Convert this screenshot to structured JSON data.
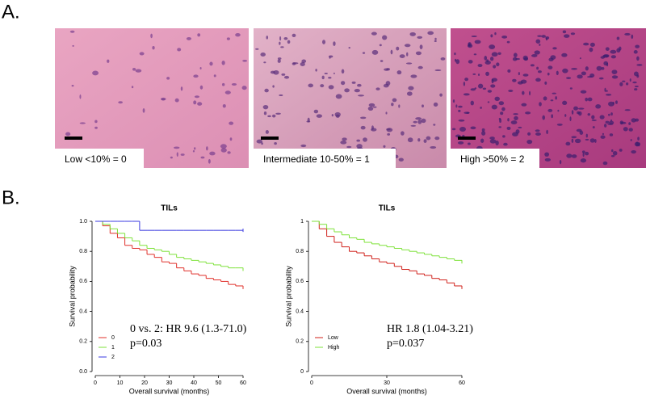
{
  "panels": {
    "a": {
      "label": "A.",
      "captions": [
        "Low <10% = 0",
        "Intermediate 10-50% = 1",
        "High >50% = 2"
      ]
    },
    "b": {
      "label": "B."
    }
  },
  "chart_data": [
    {
      "type": "line",
      "step": true,
      "title": "TILs",
      "x_label": "Overall survival (months)",
      "y_label": "Survival probability",
      "x": [
        0,
        3,
        6,
        9,
        12,
        15,
        18,
        21,
        24,
        27,
        30,
        33,
        36,
        39,
        42,
        45,
        48,
        51,
        54,
        57,
        60
      ],
      "xlim": [
        0,
        60
      ],
      "xticks": [
        0,
        10,
        20,
        30,
        40,
        50,
        60
      ],
      "ylim": [
        0,
        1
      ],
      "yticks": [
        {
          "value": 0,
          "label": "0.0"
        },
        0.2,
        0.4,
        0.6,
        0.8,
        {
          "value": 1,
          "label": "1.0"
        }
      ],
      "legend": "lower left",
      "series": [
        {
          "name": "0",
          "color": "#e0302a",
          "values": [
            1,
            0.97,
            0.92,
            0.89,
            0.84,
            0.82,
            0.81,
            0.78,
            0.76,
            0.73,
            0.72,
            0.69,
            0.67,
            0.65,
            0.64,
            0.62,
            0.61,
            0.6,
            0.58,
            0.57,
            0.56
          ]
        },
        {
          "name": "1",
          "color": "#7ee23a",
          "values": [
            1,
            0.98,
            0.95,
            0.92,
            0.89,
            0.87,
            0.84,
            0.82,
            0.81,
            0.8,
            0.78,
            0.76,
            0.75,
            0.74,
            0.73,
            0.72,
            0.71,
            0.7,
            0.69,
            0.69,
            0.68
          ]
        },
        {
          "name": "2",
          "color": "#3a3ae0",
          "values": [
            1,
            1,
            1,
            1,
            1,
            1,
            0.94,
            0.94,
            0.94,
            0.94,
            0.94,
            0.94,
            0.94,
            0.94,
            0.94,
            0.94,
            0.94,
            0.94,
            0.94,
            0.94,
            0.94
          ]
        }
      ],
      "annotations": [
        "0 vs. 2: HR 9.6 (1.3-71.0)",
        "p=0.03"
      ]
    },
    {
      "type": "line",
      "step": true,
      "title": "TILs",
      "x_label": "Overall survival (months)",
      "y_label": "Survival probability",
      "x": [
        0,
        3,
        6,
        9,
        12,
        15,
        18,
        21,
        24,
        27,
        30,
        33,
        36,
        39,
        42,
        45,
        48,
        51,
        54,
        57,
        60
      ],
      "xlim": [
        0,
        60
      ],
      "xticks": [
        0,
        30,
        60
      ],
      "ylim": [
        0,
        1
      ],
      "yticks": [
        0,
        0.2,
        0.4,
        0.6,
        0.8,
        1
      ],
      "legend": "lower left",
      "series": [
        {
          "name": "Low",
          "color": "#d0201a",
          "values": [
            1,
            0.95,
            0.9,
            0.86,
            0.83,
            0.8,
            0.79,
            0.77,
            0.75,
            0.73,
            0.72,
            0.7,
            0.68,
            0.67,
            0.65,
            0.64,
            0.62,
            0.61,
            0.59,
            0.57,
            0.56
          ]
        },
        {
          "name": "High",
          "color": "#7ee23a",
          "values": [
            1,
            0.98,
            0.95,
            0.93,
            0.91,
            0.89,
            0.88,
            0.86,
            0.85,
            0.84,
            0.83,
            0.82,
            0.81,
            0.8,
            0.79,
            0.78,
            0.77,
            0.76,
            0.75,
            0.74,
            0.73
          ]
        }
      ],
      "annotations": [
        "HR 1.8 (1.04-3.21)",
        "p=0.037"
      ]
    }
  ]
}
